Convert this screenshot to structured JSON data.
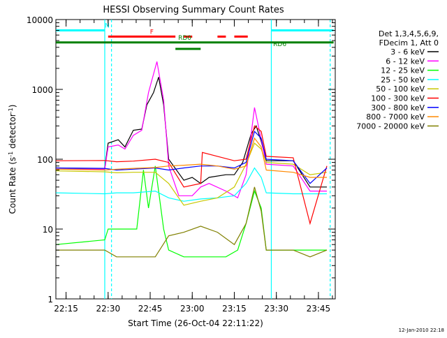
{
  "chart_data": {
    "type": "line",
    "title": "HESSI Observing Summary Count Rates",
    "xlabel": "Start Time (26-Oct-04 22:11:22)",
    "ylabel": "Count Rate (s⁻¹ detector⁻¹)",
    "ylabel_parts": {
      "main": "Count Rate (s",
      "sup1": "-1",
      "mid": " detector",
      "sup2": "-1",
      "end": ")"
    },
    "y_scale": "log",
    "ylim": [
      1,
      10000
    ],
    "xlim": [
      "22:11:22",
      "23:51:00"
    ],
    "x_ticks": [
      "22:15",
      "22:30",
      "22:45",
      "23:00",
      "23:15",
      "23:30",
      "23:45"
    ],
    "y_ticks": [
      "1",
      "10",
      "100",
      "1000",
      "10000"
    ],
    "footer_date": "12-Jan-2010 22:18",
    "legend": {
      "header": [
        "Det 1,3,4,5,6,9,",
        "FDecim 1, Att 0"
      ],
      "placement": "right"
    },
    "series": [
      {
        "name": "3 - 6 keV",
        "color": "#000000",
        "points": [
          [
            22.19,
            75
          ],
          [
            22.35,
            74
          ],
          [
            22.48,
            74
          ],
          [
            22.5,
            170
          ],
          [
            22.56,
            190
          ],
          [
            22.6,
            150
          ],
          [
            22.65,
            260
          ],
          [
            22.7,
            270
          ],
          [
            22.73,
            600
          ],
          [
            22.77,
            900
          ],
          [
            22.8,
            1500
          ],
          [
            22.83,
            600
          ],
          [
            22.86,
            100
          ],
          [
            22.95,
            50
          ],
          [
            23.0,
            55
          ],
          [
            23.05,
            45
          ],
          [
            23.1,
            55
          ],
          [
            23.2,
            60
          ],
          [
            23.25,
            60
          ],
          [
            23.3,
            90
          ],
          [
            23.35,
            230
          ],
          [
            23.38,
            300
          ],
          [
            23.41,
            180
          ],
          [
            23.44,
            95
          ],
          [
            23.6,
            95
          ],
          [
            23.7,
            40
          ],
          [
            23.8,
            40
          ]
        ]
      },
      {
        "name": "6 - 12 keV",
        "color": "#ff00ff",
        "points": [
          [
            22.19,
            72
          ],
          [
            22.48,
            72
          ],
          [
            22.5,
            150
          ],
          [
            22.56,
            160
          ],
          [
            22.6,
            140
          ],
          [
            22.65,
            220
          ],
          [
            22.7,
            260
          ],
          [
            22.74,
            900
          ],
          [
            22.79,
            2500
          ],
          [
            22.83,
            700
          ],
          [
            22.86,
            80
          ],
          [
            22.92,
            30
          ],
          [
            23.0,
            30
          ],
          [
            23.05,
            40
          ],
          [
            23.1,
            45
          ],
          [
            23.2,
            35
          ],
          [
            23.27,
            28
          ],
          [
            23.32,
            60
          ],
          [
            23.37,
            550
          ],
          [
            23.4,
            250
          ],
          [
            23.44,
            85
          ],
          [
            23.6,
            80
          ],
          [
            23.7,
            35
          ],
          [
            23.8,
            35
          ]
        ]
      },
      {
        "name": "12 - 25 keV",
        "color": "#00ff00",
        "points": [
          [
            22.19,
            6
          ],
          [
            22.48,
            7
          ],
          [
            22.5,
            10
          ],
          [
            22.62,
            10
          ],
          [
            22.67,
            10
          ],
          [
            22.71,
            70
          ],
          [
            22.74,
            20
          ],
          [
            22.78,
            80
          ],
          [
            22.83,
            10
          ],
          [
            22.86,
            5
          ],
          [
            22.95,
            4
          ],
          [
            23.05,
            4
          ],
          [
            23.1,
            4
          ],
          [
            23.2,
            4
          ],
          [
            23.27,
            5
          ],
          [
            23.32,
            12
          ],
          [
            23.37,
            35
          ],
          [
            23.41,
            20
          ],
          [
            23.44,
            5
          ],
          [
            23.8,
            5
          ]
        ]
      },
      {
        "name": "25 - 50 keV",
        "color": "#00ffff",
        "points": [
          [
            22.19,
            33
          ],
          [
            22.48,
            32
          ],
          [
            22.55,
            33
          ],
          [
            22.65,
            33
          ],
          [
            22.78,
            35
          ],
          [
            22.86,
            28
          ],
          [
            22.95,
            25
          ],
          [
            23.05,
            27
          ],
          [
            23.15,
            28
          ],
          [
            23.25,
            30
          ],
          [
            23.32,
            45
          ],
          [
            23.37,
            75
          ],
          [
            23.41,
            55
          ],
          [
            23.44,
            33
          ],
          [
            23.6,
            32
          ],
          [
            23.7,
            32
          ],
          [
            23.8,
            32
          ]
        ]
      },
      {
        "name": "50 - 100 keV",
        "color": "#c8c800",
        "points": [
          [
            22.19,
            68
          ],
          [
            22.48,
            66
          ],
          [
            22.55,
            64
          ],
          [
            22.65,
            65
          ],
          [
            22.78,
            65
          ],
          [
            22.86,
            45
          ],
          [
            22.95,
            22
          ],
          [
            23.05,
            25
          ],
          [
            23.15,
            28
          ],
          [
            23.25,
            40
          ],
          [
            23.32,
            85
          ],
          [
            23.37,
            170
          ],
          [
            23.41,
            140
          ],
          [
            23.44,
            90
          ],
          [
            23.6,
            85
          ],
          [
            23.7,
            60
          ],
          [
            23.8,
            65
          ]
        ]
      },
      {
        "name": "100 - 300 keV",
        "color": "#ff0000",
        "points": [
          [
            22.19,
            95
          ],
          [
            22.48,
            96
          ],
          [
            22.55,
            92
          ],
          [
            22.65,
            94
          ],
          [
            22.78,
            100
          ],
          [
            22.86,
            90
          ],
          [
            22.95,
            40
          ],
          [
            23.05,
            45
          ],
          [
            23.06,
            125
          ],
          [
            23.15,
            110
          ],
          [
            23.25,
            95
          ],
          [
            23.32,
            100
          ],
          [
            23.37,
            300
          ],
          [
            23.41,
            250
          ],
          [
            23.44,
            110
          ],
          [
            23.6,
            105
          ],
          [
            23.7,
            12
          ],
          [
            23.8,
            80
          ]
        ]
      },
      {
        "name": "300 - 800 keV",
        "color": "#0000ff",
        "points": [
          [
            22.19,
            75
          ],
          [
            22.48,
            74
          ],
          [
            22.55,
            70
          ],
          [
            22.65,
            72
          ],
          [
            22.78,
            75
          ],
          [
            22.86,
            70
          ],
          [
            22.95,
            75
          ],
          [
            23.05,
            80
          ],
          [
            23.15,
            80
          ],
          [
            23.25,
            75
          ],
          [
            23.32,
            90
          ],
          [
            23.37,
            250
          ],
          [
            23.41,
            200
          ],
          [
            23.44,
            100
          ],
          [
            23.6,
            95
          ],
          [
            23.7,
            45
          ],
          [
            23.8,
            75
          ]
        ]
      },
      {
        "name": "800 - 7000 keV",
        "color": "#ff8800",
        "points": [
          [
            22.19,
            72
          ],
          [
            22.48,
            70
          ],
          [
            22.55,
            72
          ],
          [
            22.65,
            74
          ],
          [
            22.78,
            76
          ],
          [
            22.86,
            80
          ],
          [
            22.95,
            82
          ],
          [
            23.05,
            85
          ],
          [
            23.15,
            80
          ],
          [
            23.25,
            72
          ],
          [
            23.32,
            80
          ],
          [
            23.37,
            200
          ],
          [
            23.41,
            150
          ],
          [
            23.44,
            70
          ],
          [
            23.6,
            65
          ],
          [
            23.7,
            55
          ],
          [
            23.8,
            55
          ]
        ]
      },
      {
        "name": "7000 - 20000 keV",
        "color": "#808000",
        "points": [
          [
            22.19,
            5
          ],
          [
            22.48,
            5
          ],
          [
            22.55,
            4
          ],
          [
            22.65,
            4
          ],
          [
            22.78,
            4
          ],
          [
            22.86,
            8
          ],
          [
            22.95,
            9
          ],
          [
            23.05,
            11
          ],
          [
            23.15,
            9
          ],
          [
            23.25,
            6
          ],
          [
            23.32,
            12
          ],
          [
            23.37,
            40
          ],
          [
            23.41,
            18
          ],
          [
            23.44,
            5
          ],
          [
            23.6,
            5
          ],
          [
            23.7,
            4
          ],
          [
            23.8,
            5
          ]
        ]
      }
    ],
    "flag_bars": [
      {
        "label": "N",
        "color": "#00ffff",
        "y": 7000,
        "segments": [
          [
            22.19,
            22.48
          ],
          [
            23.47,
            23.84
          ]
        ]
      },
      {
        "label": "F",
        "color": "#ff0000",
        "y": 5700,
        "segments": [
          [
            22.5,
            22.9
          ],
          [
            22.95,
            23.0
          ],
          [
            23.15,
            23.2
          ],
          [
            23.25,
            23.33
          ]
        ]
      },
      {
        "label": "RD0",
        "color": "#008000",
        "y": 4700,
        "segments": [
          [
            22.19,
            23.84
          ]
        ]
      },
      {
        "label": "RD6",
        "color": "#008000",
        "y": 3800,
        "segments": [
          [
            22.9,
            23.05
          ]
        ]
      }
    ],
    "vertical_markers": [
      {
        "color": "#00ffff",
        "style": "solid",
        "x": 22.48
      },
      {
        "color": "#00ffff",
        "style": "dashed",
        "x": 22.52
      },
      {
        "color": "#00ffff",
        "style": "solid",
        "x": 23.47
      },
      {
        "color": "#00ffff",
        "style": "dashed",
        "x": 23.82
      }
    ]
  }
}
